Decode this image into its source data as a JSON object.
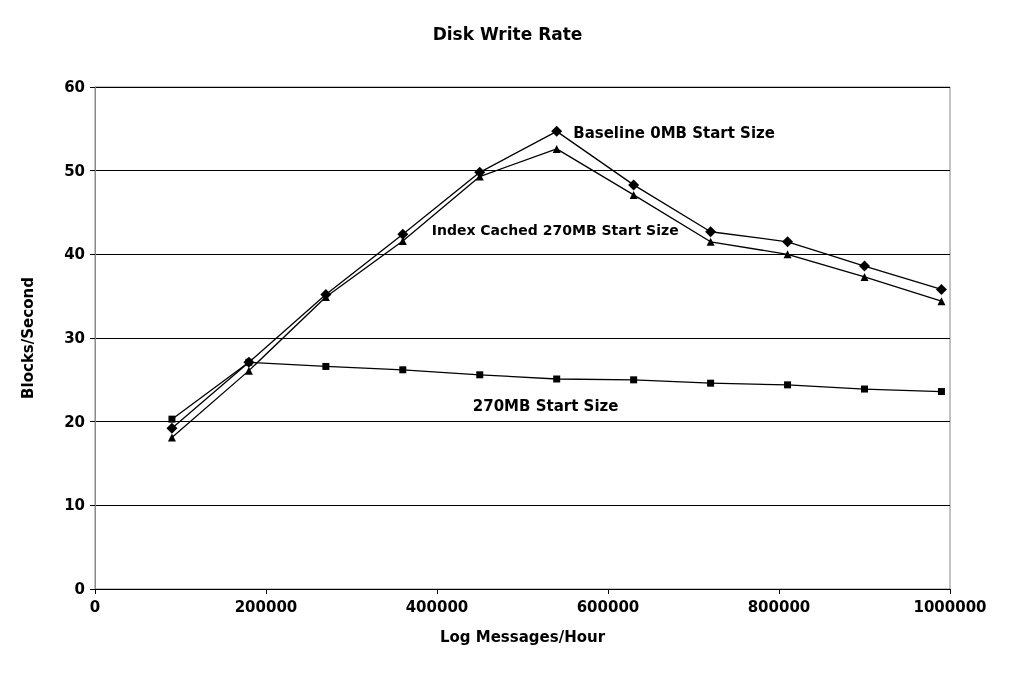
{
  "chart_data": {
    "type": "line",
    "title": "Disk Write Rate",
    "xlabel": "Log Messages/Hour",
    "ylabel": "Blocks/Second",
    "x": [
      90000,
      180000,
      270000,
      360000,
      450000,
      540000,
      630000,
      720000,
      810000,
      900000,
      990000
    ],
    "series": [
      {
        "name": "Baseline 0MB Start Size",
        "color": "#000000",
        "marker": "diamond",
        "values": [
          19.2,
          27.1,
          35.2,
          42.4,
          49.8,
          54.7,
          48.3,
          42.7,
          41.5,
          38.6,
          35.8
        ]
      },
      {
        "name": "Index Cached 270MB Start Size",
        "color": "#000000",
        "marker": "triangle",
        "values": [
          18.1,
          26.1,
          34.9,
          41.6,
          49.3,
          52.6,
          47.1,
          41.5,
          40.0,
          37.3,
          34.4
        ]
      },
      {
        "name": "270MB Start Size",
        "color": "#000000",
        "marker": "square",
        "values": [
          20.3,
          27.1,
          26.6,
          26.2,
          25.6,
          25.1,
          25.0,
          24.6,
          24.4,
          23.9,
          23.6
        ]
      }
    ],
    "xlim": [
      0,
      1000000
    ],
    "xticks": [
      0,
      200000,
      400000,
      600000,
      800000,
      1000000
    ],
    "ylim": [
      0,
      60
    ],
    "yticks": [
      0,
      10,
      20,
      30,
      40,
      50,
      60
    ],
    "grid": "y",
    "legend": false,
    "line_style": "solid"
  }
}
